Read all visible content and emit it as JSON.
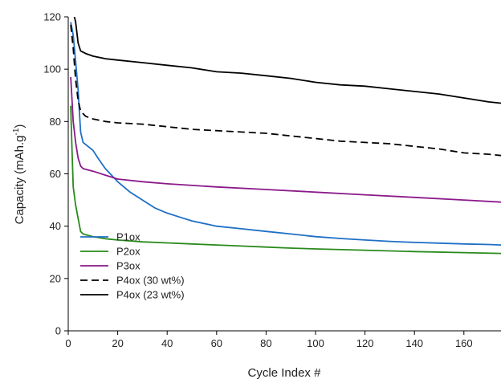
{
  "chart_data": {
    "type": "line",
    "xlabel": "Cycle Index #",
    "ylabel_main": "Capacity (mAh.g",
    "ylabel_sup": "-1",
    "ylabel_close": ")",
    "xlim": [
      0,
      175
    ],
    "ylim": [
      0,
      120
    ],
    "xticks": [
      0,
      20,
      40,
      60,
      80,
      100,
      120,
      140,
      160
    ],
    "yticks": [
      0,
      20,
      40,
      60,
      80,
      100,
      120
    ],
    "grid": false,
    "legend_position": "bottom-left",
    "series": [
      {
        "name": "P1ox",
        "color": "#1f6fc6",
        "dash": "solid",
        "points": [
          [
            1,
            118
          ],
          [
            2,
            113
          ],
          [
            3,
            103
          ],
          [
            4,
            92
          ],
          [
            5,
            76
          ],
          [
            6,
            72
          ],
          [
            8,
            70.5
          ],
          [
            10,
            69
          ],
          [
            12,
            66
          ],
          [
            15,
            62
          ],
          [
            18,
            59
          ],
          [
            20,
            57
          ],
          [
            25,
            53
          ],
          [
            30,
            50
          ],
          [
            35,
            47
          ],
          [
            40,
            45
          ],
          [
            45,
            43.5
          ],
          [
            50,
            42
          ],
          [
            60,
            40
          ],
          [
            70,
            39
          ],
          [
            80,
            38
          ],
          [
            90,
            37
          ],
          [
            100,
            36
          ],
          [
            110,
            35.3
          ],
          [
            120,
            34.7
          ],
          [
            130,
            34.2
          ],
          [
            140,
            33.8
          ],
          [
            150,
            33.5
          ],
          [
            160,
            33.2
          ],
          [
            170,
            33
          ],
          [
            175,
            32.8
          ]
        ]
      },
      {
        "name": "P2ox",
        "color": "#2a8a1c",
        "dash": "solid",
        "points": [
          [
            1,
            86
          ],
          [
            1.5,
            70
          ],
          [
            2,
            55
          ],
          [
            3,
            48
          ],
          [
            4,
            43
          ],
          [
            5,
            38
          ],
          [
            6,
            37
          ],
          [
            8,
            36.5
          ],
          [
            10,
            36
          ],
          [
            15,
            35.2
          ],
          [
            20,
            34.7
          ],
          [
            30,
            34
          ],
          [
            40,
            33.6
          ],
          [
            50,
            33.2
          ],
          [
            60,
            32.8
          ],
          [
            70,
            32.4
          ],
          [
            80,
            32
          ],
          [
            90,
            31.6
          ],
          [
            100,
            31.3
          ],
          [
            120,
            30.8
          ],
          [
            140,
            30.3
          ],
          [
            160,
            29.9
          ],
          [
            175,
            29.6
          ]
        ]
      },
      {
        "name": "P3ox",
        "color": "#8a1a8a",
        "dash": "solid",
        "points": [
          [
            1,
            97
          ],
          [
            2,
            80
          ],
          [
            3,
            72
          ],
          [
            4,
            66
          ],
          [
            5,
            63
          ],
          [
            6,
            62
          ],
          [
            8,
            61.5
          ],
          [
            10,
            61
          ],
          [
            15,
            59.5
          ],
          [
            20,
            58
          ],
          [
            30,
            57
          ],
          [
            40,
            56.2
          ],
          [
            60,
            55
          ],
          [
            80,
            54
          ],
          [
            100,
            53
          ],
          [
            120,
            52
          ],
          [
            140,
            51
          ],
          [
            160,
            50
          ],
          [
            175,
            49.2
          ]
        ]
      },
      {
        "name": "P4ox (30 wt%)",
        "color": "#000000",
        "dash": "dashed",
        "points": [
          [
            1,
            117
          ],
          [
            2,
            108
          ],
          [
            3,
            96
          ],
          [
            4,
            88
          ],
          [
            5,
            84
          ],
          [
            7,
            82
          ],
          [
            10,
            81
          ],
          [
            15,
            80
          ],
          [
            20,
            79.5
          ],
          [
            30,
            79
          ],
          [
            40,
            78
          ],
          [
            50,
            77
          ],
          [
            60,
            76.5
          ],
          [
            70,
            76
          ],
          [
            80,
            75.5
          ],
          [
            90,
            74.5
          ],
          [
            100,
            73.5
          ],
          [
            110,
            72.5
          ],
          [
            120,
            72
          ],
          [
            130,
            71.5
          ],
          [
            140,
            70.5
          ],
          [
            150,
            69.5
          ],
          [
            160,
            68
          ],
          [
            170,
            67.5
          ],
          [
            175,
            67
          ]
        ]
      },
      {
        "name": "P4ox (23 wt%)",
        "color": "#000000",
        "dash": "solid",
        "points": [
          [
            1,
            121
          ],
          [
            2,
            122
          ],
          [
            3,
            118
          ],
          [
            4,
            110
          ],
          [
            5,
            107
          ],
          [
            7,
            106
          ],
          [
            10,
            105
          ],
          [
            15,
            104
          ],
          [
            20,
            103.5
          ],
          [
            30,
            102.5
          ],
          [
            40,
            101.5
          ],
          [
            50,
            100.5
          ],
          [
            60,
            99
          ],
          [
            70,
            98.5
          ],
          [
            80,
            97.5
          ],
          [
            90,
            96.5
          ],
          [
            100,
            95
          ],
          [
            110,
            94
          ],
          [
            120,
            93.5
          ],
          [
            130,
            92.5
          ],
          [
            140,
            91.5
          ],
          [
            150,
            90.5
          ],
          [
            160,
            89
          ],
          [
            170,
            87.5
          ],
          [
            175,
            87
          ]
        ]
      }
    ]
  }
}
